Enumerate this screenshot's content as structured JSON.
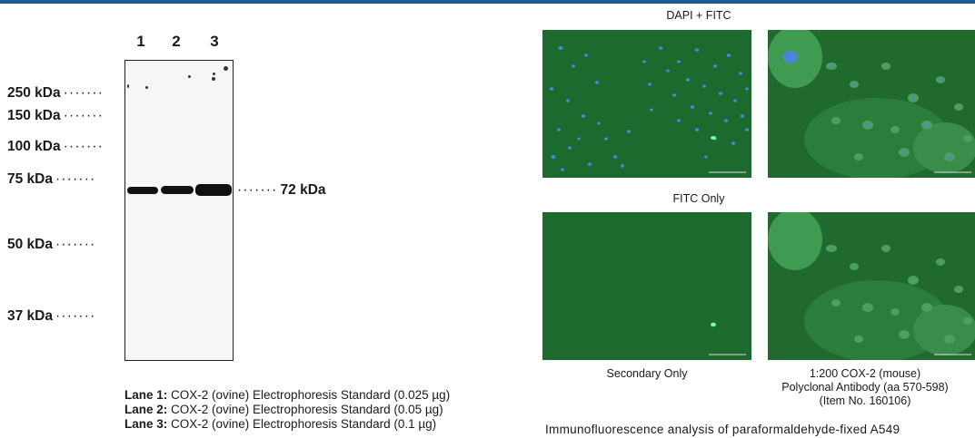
{
  "western_blot": {
    "lanes": [
      "1",
      "2",
      "3"
    ],
    "markers": [
      "250 kDa",
      "150 kDa",
      "100 kDa",
      "75 kDa",
      "50 kDa",
      "37 kDa"
    ],
    "band_label": "72 kDa",
    "dots": "·······",
    "legend": [
      {
        "label": "Lane 1:",
        "text": " COX-2 (ovine) Electrophoresis Standard (0.025 µg)"
      },
      {
        "label": "Lane 2:",
        "text": " COX-2 (ovine) Electrophoresis Standard (0.05 µg)"
      },
      {
        "label": "Lane 3:",
        "text": " COX-2 (ovine) Electrophoresis Standard (0.1 µg)"
      }
    ]
  },
  "immunofluorescence": {
    "row1_heading": "DAPI + FITC",
    "row2_heading": "FITC Only",
    "caption_left": "Secondary Only",
    "caption_right": [
      "1:200 COX-2 (mouse)",
      "Polyclonal Antibody (aa 570-598)",
      "(Item No. 160106)"
    ],
    "body_text": "Immunofluorescence analysis of paraformaldehyde-fixed A549"
  },
  "colors": {
    "accent_rule": "#1f5b8a",
    "panel_green": "#1f6a2c",
    "nucleus_blue": "#3d8fe0"
  }
}
